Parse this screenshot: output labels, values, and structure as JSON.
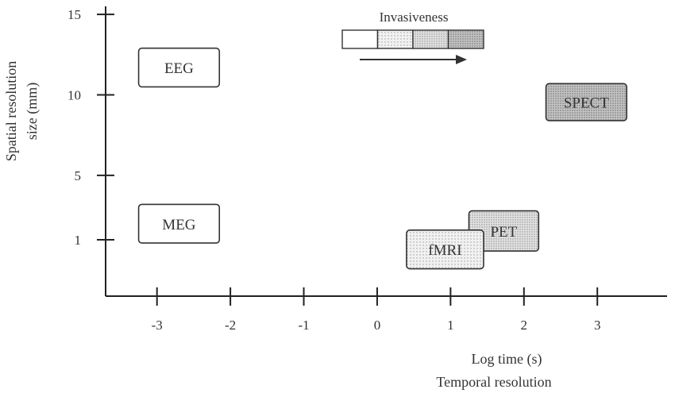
{
  "chart_data": {
    "type": "box-diagram",
    "x_ticks": [
      "-3",
      "-2",
      "-1",
      "0",
      "1",
      "2",
      "3"
    ],
    "y_ticks": [
      "15",
      "10",
      "5",
      "1"
    ],
    "xlabel_line1": "Log time (s)",
    "xlabel_line2": "Temporal resolution",
    "ylabel_line1": "Spatial resolution",
    "ylabel_line2": "size (mm)",
    "xlim": [
      -3.7,
      3.95
    ],
    "ylim": [
      -2.5,
      15.5
    ],
    "techniques": [
      {
        "label": "EEG",
        "x": [
          -3.25,
          -2.15
        ],
        "y": [
          10.5,
          12.9
        ],
        "invasiveness": 0
      },
      {
        "label": "MEG",
        "x": [
          -3.25,
          -2.15
        ],
        "y": [
          0.8,
          3.2
        ],
        "invasiveness": 0
      },
      {
        "label": "SPECT",
        "x": [
          2.3,
          3.4
        ],
        "y": [
          8.4,
          10.7
        ],
        "invasiveness": 3
      },
      {
        "label": "PET",
        "x": [
          1.25,
          2.2
        ],
        "y": [
          0.3,
          2.8
        ],
        "invasiveness": 2
      },
      {
        "label": "fMRI",
        "x": [
          0.4,
          1.45
        ],
        "y": [
          -0.8,
          1.6
        ],
        "invasiveness": 1
      }
    ],
    "legend": {
      "title": "Invasiveness",
      "levels": 4,
      "position": "top-center"
    },
    "fills": [
      "#ffffff",
      "#e6e6e6",
      "#d4d4d4",
      "#b4b4b4"
    ]
  }
}
